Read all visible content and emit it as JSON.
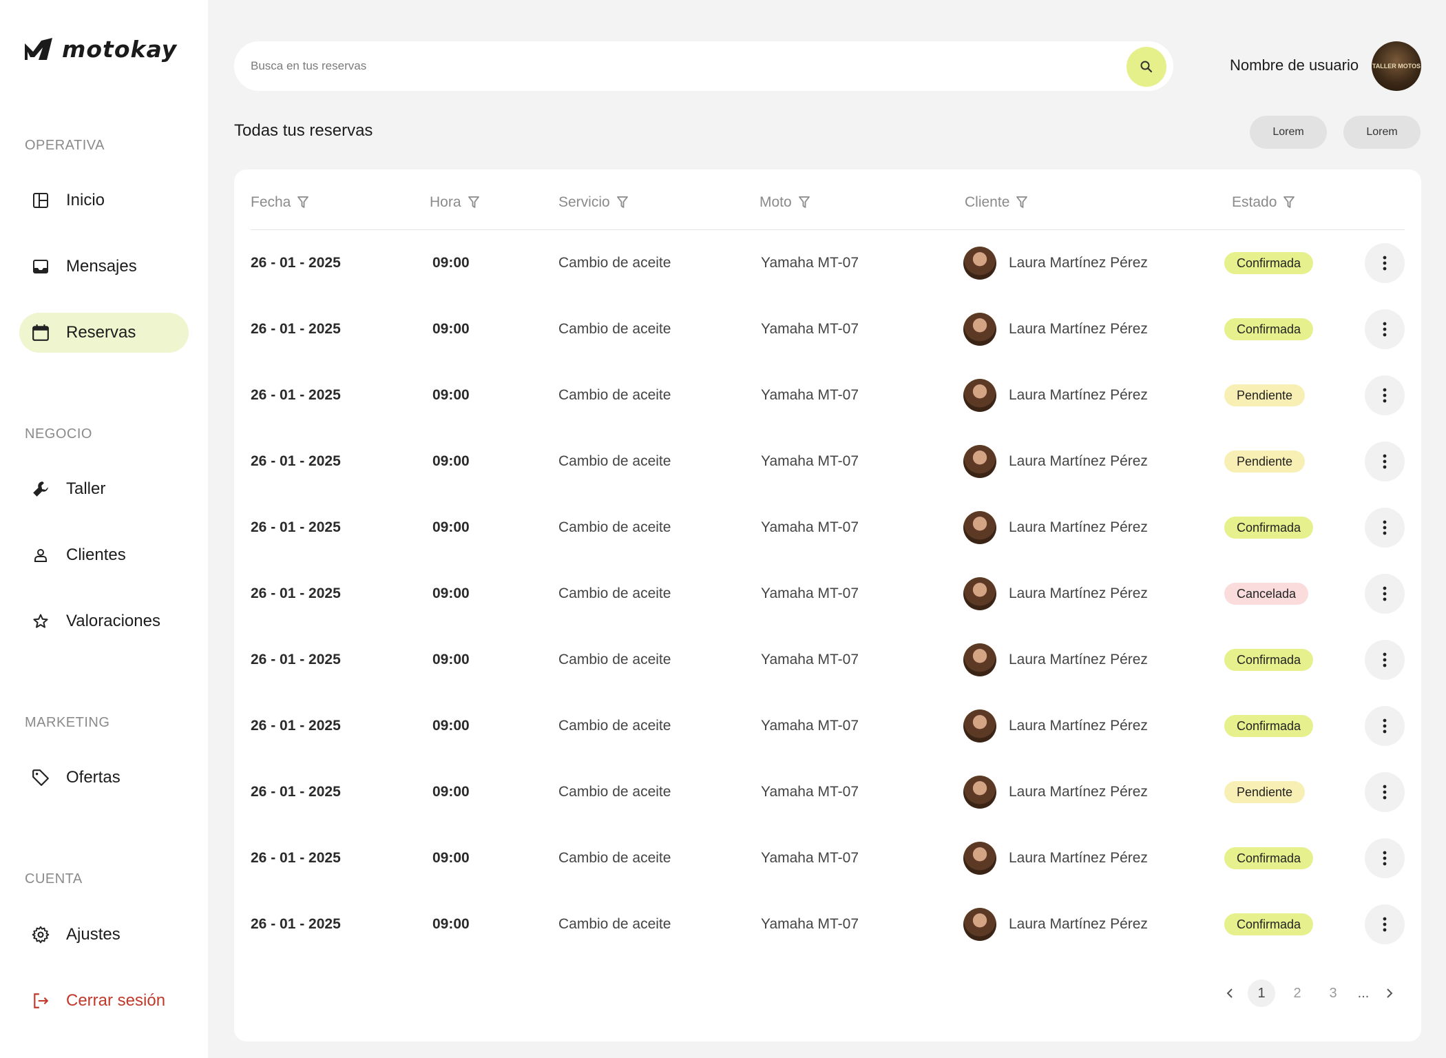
{
  "app": {
    "brand": "motokay",
    "accent": "#e5f08a"
  },
  "sidebar": {
    "sections": [
      {
        "title": "OPERATIVA",
        "items": [
          {
            "label": "Inicio",
            "icon": "dashboard-icon"
          },
          {
            "label": "Mensajes",
            "icon": "inbox-icon"
          },
          {
            "label": "Reservas",
            "icon": "calendar-icon",
            "active": true
          }
        ]
      },
      {
        "title": "NEGOCIO",
        "items": [
          {
            "label": "Taller",
            "icon": "wrench-icon"
          },
          {
            "label": "Clientes",
            "icon": "user-icon"
          },
          {
            "label": "Valoraciones",
            "icon": "star-icon"
          }
        ]
      },
      {
        "title": "MARKETING",
        "items": [
          {
            "label": "Ofertas",
            "icon": "tag-icon"
          }
        ]
      },
      {
        "title": "CUENTA",
        "items": [
          {
            "label": "Ajustes",
            "icon": "gear-icon"
          },
          {
            "label": "Cerrar sesión",
            "icon": "logout-icon"
          }
        ]
      }
    ]
  },
  "header": {
    "search_placeholder": "Busca en tus reservas",
    "user_name": "Nombre de usuario",
    "avatar_text": "TALLER MOTOS"
  },
  "main": {
    "title": "Todas tus reservas",
    "actions": [
      "Lorem",
      "Lorem"
    ],
    "columns": [
      "Fecha",
      "Hora",
      "Servicio",
      "Moto",
      "Cliente",
      "Estado"
    ],
    "rows": [
      {
        "fecha": "26 - 01 - 2025",
        "hora": "09:00",
        "servicio": "Cambio de aceite",
        "moto": "Yamaha MT-07",
        "cliente": "Laura Martínez Pérez",
        "estado": "Confirmada"
      },
      {
        "fecha": "26 - 01 - 2025",
        "hora": "09:00",
        "servicio": "Cambio de aceite",
        "moto": "Yamaha MT-07",
        "cliente": "Laura Martínez Pérez",
        "estado": "Confirmada"
      },
      {
        "fecha": "26 - 01 - 2025",
        "hora": "09:00",
        "servicio": "Cambio de aceite",
        "moto": "Yamaha MT-07",
        "cliente": "Laura Martínez Pérez",
        "estado": "Pendiente"
      },
      {
        "fecha": "26 - 01 - 2025",
        "hora": "09:00",
        "servicio": "Cambio de aceite",
        "moto": "Yamaha MT-07",
        "cliente": "Laura Martínez Pérez",
        "estado": "Pendiente"
      },
      {
        "fecha": "26 - 01 - 2025",
        "hora": "09:00",
        "servicio": "Cambio de aceite",
        "moto": "Yamaha MT-07",
        "cliente": "Laura Martínez Pérez",
        "estado": "Confirmada"
      },
      {
        "fecha": "26 - 01 - 2025",
        "hora": "09:00",
        "servicio": "Cambio de aceite",
        "moto": "Yamaha MT-07",
        "cliente": "Laura Martínez Pérez",
        "estado": "Cancelada"
      },
      {
        "fecha": "26 - 01 - 2025",
        "hora": "09:00",
        "servicio": "Cambio de aceite",
        "moto": "Yamaha MT-07",
        "cliente": "Laura Martínez Pérez",
        "estado": "Confirmada"
      },
      {
        "fecha": "26 - 01 - 2025",
        "hora": "09:00",
        "servicio": "Cambio de aceite",
        "moto": "Yamaha MT-07",
        "cliente": "Laura Martínez Pérez",
        "estado": "Confirmada"
      },
      {
        "fecha": "26 - 01 - 2025",
        "hora": "09:00",
        "servicio": "Cambio de aceite",
        "moto": "Yamaha MT-07",
        "cliente": "Laura Martínez Pérez",
        "estado": "Pendiente"
      },
      {
        "fecha": "26 - 01 - 2025",
        "hora": "09:00",
        "servicio": "Cambio de aceite",
        "moto": "Yamaha MT-07",
        "cliente": "Laura Martínez Pérez",
        "estado": "Confirmada"
      },
      {
        "fecha": "26 - 01 - 2025",
        "hora": "09:00",
        "servicio": "Cambio de aceite",
        "moto": "Yamaha MT-07",
        "cliente": "Laura Martínez Pérez",
        "estado": "Confirmada"
      }
    ],
    "pagination": {
      "pages": [
        "1",
        "2",
        "3"
      ],
      "current": "1",
      "ellipsis": "..."
    }
  }
}
